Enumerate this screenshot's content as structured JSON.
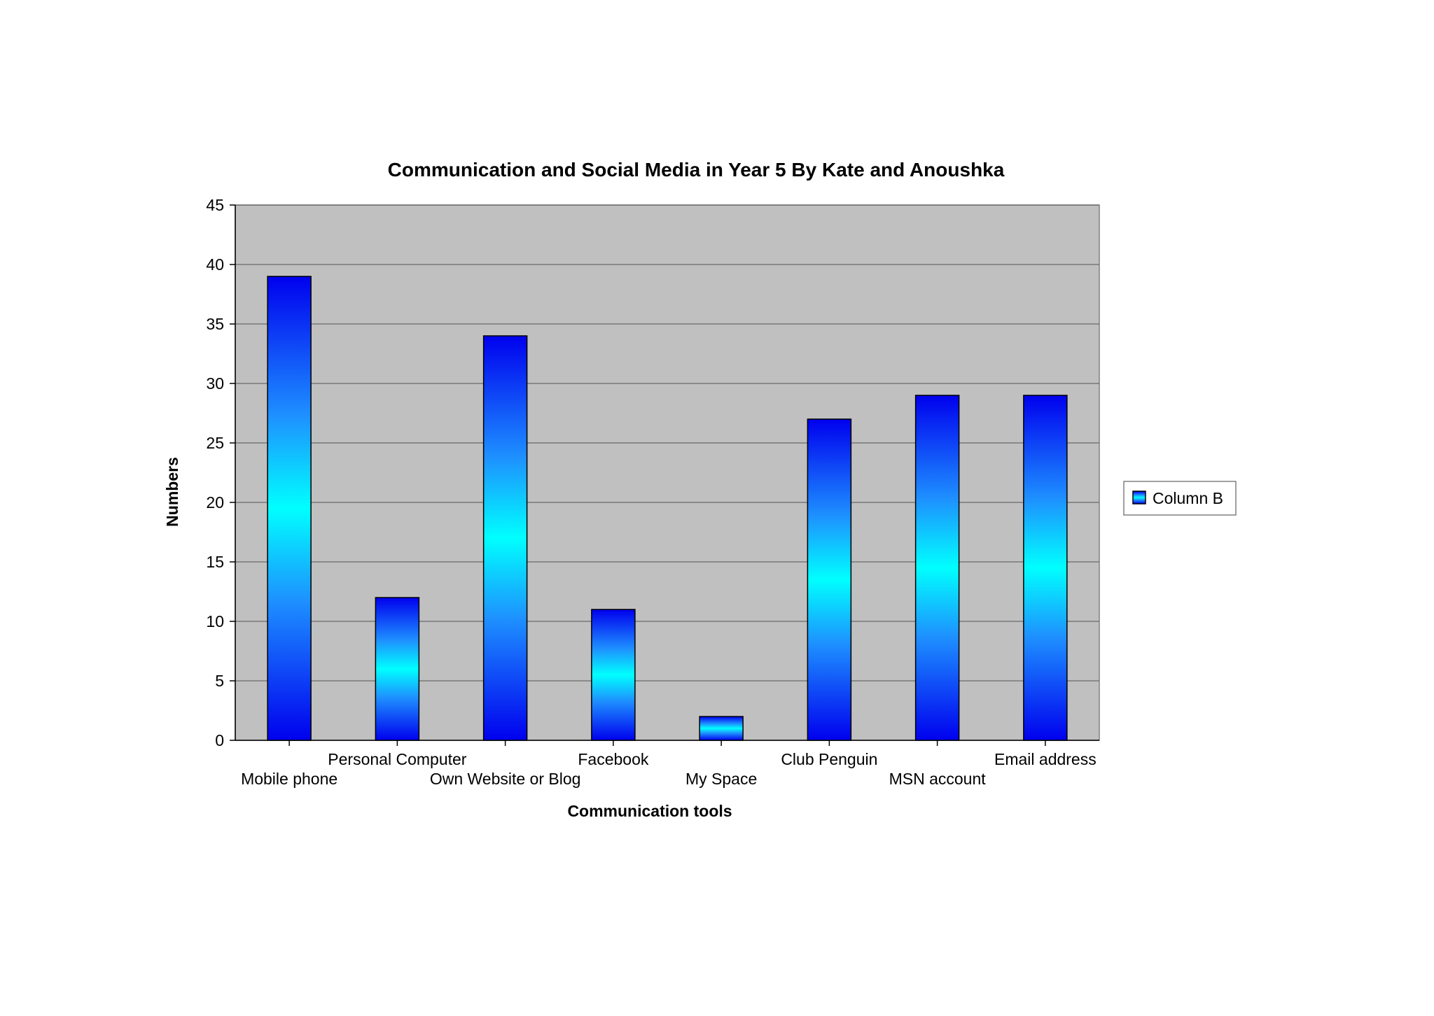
{
  "chart_data": {
    "type": "bar",
    "title": "Communication and Social Media in Year 5 By Kate and Anoushka",
    "xlabel": "Communication tools",
    "ylabel": "Numbers",
    "categories": [
      "Mobile phone",
      "Personal Computer",
      "Own Website or Blog",
      "Facebook",
      "My Space",
      "Club Penguin",
      "MSN account",
      "Email address"
    ],
    "series": [
      {
        "name": "Column B",
        "values": [
          39,
          12,
          34,
          11,
          2,
          27,
          29,
          29
        ]
      }
    ],
    "ylim": [
      0,
      45
    ],
    "yticks": [
      0,
      5,
      10,
      15,
      20,
      25,
      30,
      35,
      40,
      45
    ],
    "grid": true,
    "legend": "right",
    "colors": {
      "plot_background": "#c0c0c0",
      "bar_dark": "#0000ee",
      "bar_mid": "#1e90ff",
      "bar_light": "#00ffff",
      "gridline": "#555555"
    }
  }
}
